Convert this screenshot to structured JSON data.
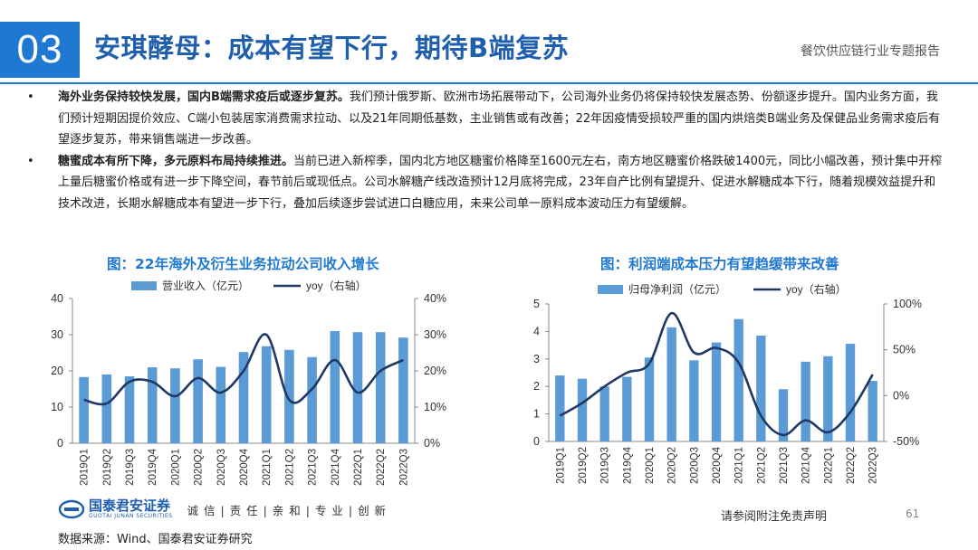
{
  "header": {
    "section_number": "03",
    "title": "安琪酵母：成本有望下行，期待B端复苏",
    "report_name": "餐饮供应链行业专题报告"
  },
  "bullets": [
    {
      "marker": "•",
      "bold": "海外业务保持较快发展，国内B端需求疫后或逐步复苏。",
      "text": "我们预计俄罗斯、欧洲市场拓展带动下，公司海外业务仍将保持较快发展态势、份额逐步提升。国内业务方面，我们预计短期因提价效应、C端小包装居家消费需求拉动、以及21年同期低基数，主业销售或有改善；22年因疫情受损较严重的国内烘焙类B端业务及保健品业务需求疫后有望逐步复苏，带来销售端进一步改善。"
    },
    {
      "marker": "•",
      "bold": "糖蜜成本有所下降，多元原料布局持续推进。",
      "text": "当前已进入新榨季，国内北方地区糖蜜价格降至1600元左右，南方地区糖蜜价格跌破1400元，同比小幅改善，预计集中开榨上量后糖蜜价格或有进一步下降空间，春节前后或现低点。公司水解糖产线改造预计12月底将完成，23年自产比例有望提升、促进水解糖成本下行，随着规模效益提升和技术改进，长期水解糖成本有望进一步下行，叠加后续逐步尝试进口白糖应用，未来公司单一原料成本波动压力有望缓解。"
    }
  ],
  "chart_data": [
    {
      "type": "bar",
      "title": "图：22年海外及衍生业务拉动公司收入增长",
      "categories": [
        "2019Q1",
        "2019Q2",
        "2019Q3",
        "2019Q4",
        "2020Q1",
        "2020Q2",
        "2020Q3",
        "2020Q4",
        "2021Q1",
        "2021Q2",
        "2021Q3",
        "2021Q4",
        "2022Q1",
        "2022Q2",
        "2022Q3"
      ],
      "series": [
        {
          "name": "营业收入（亿元）",
          "type": "bar",
          "axis": "left",
          "values": [
            18.3,
            19.0,
            18.5,
            21.0,
            20.7,
            23.2,
            21.1,
            25.2,
            26.8,
            25.8,
            23.8,
            31.0,
            30.7,
            30.7,
            29.2
          ]
        },
        {
          "name": "yoy（右轴）",
          "type": "line",
          "axis": "right",
          "values": [
            0.12,
            0.11,
            0.17,
            0.17,
            0.13,
            0.18,
            0.14,
            0.2,
            0.3,
            0.12,
            0.15,
            0.23,
            0.14,
            0.2,
            0.23
          ]
        }
      ],
      "ylim_left": [
        0,
        40
      ],
      "yticks_left": [
        "0",
        "10",
        "20",
        "30",
        "40"
      ],
      "ylim_right": [
        0,
        0.4
      ],
      "yticks_right": [
        "0%",
        "10%",
        "20%",
        "30%",
        "40%"
      ],
      "legend": "top",
      "grid": false,
      "colors": {
        "bar": "#5b9bd5",
        "line": "#1f3864"
      }
    },
    {
      "type": "bar",
      "title": "图：利润端成本压力有望趋缓带来改善",
      "categories": [
        "2019Q1",
        "2019Q2",
        "2019Q3",
        "2019Q4",
        "2020Q1",
        "2020Q2",
        "2020Q3",
        "2020Q4",
        "2021Q1",
        "2021Q2",
        "2021Q3",
        "2021Q4",
        "2022Q1",
        "2022Q2",
        "2022Q3"
      ],
      "series": [
        {
          "name": "归母净利润（亿元）",
          "type": "bar",
          "axis": "left",
          "values": [
            2.4,
            2.28,
            2.0,
            2.35,
            3.05,
            4.15,
            2.95,
            3.6,
            4.45,
            3.85,
            1.9,
            2.9,
            3.1,
            3.55,
            2.2
          ]
        },
        {
          "name": "yoy（右轴）",
          "type": "line",
          "axis": "right",
          "values": [
            -0.22,
            -0.08,
            0.1,
            0.25,
            0.35,
            0.9,
            0.47,
            0.52,
            0.36,
            -0.22,
            -0.43,
            -0.27,
            -0.4,
            -0.18,
            0.23
          ]
        }
      ],
      "ylim_left": [
        0,
        5
      ],
      "yticks_left": [
        "0",
        "1",
        "2",
        "3",
        "4",
        "5"
      ],
      "ylim_right": [
        -0.5,
        1.0
      ],
      "yticks_right": [
        "-50%",
        "0%",
        "50%",
        "100%"
      ],
      "legend": "top",
      "grid": false,
      "colors": {
        "bar": "#5b9bd5",
        "line": "#1f3864"
      }
    }
  ],
  "footer": {
    "logo_cn": "国泰君安证券",
    "logo_en": "GUOTAI JUNAN SECURITIES",
    "slogan": "诚 信 | 责 任 | 亲 和 | 专 业 | 创 新",
    "disclaimer": "请参阅附注免责声明",
    "page_number": "61",
    "source": "数据来源：Wind、国泰君安证券研究"
  },
  "colors": {
    "accent": "#1f78d1",
    "title": "#1f5fae"
  }
}
